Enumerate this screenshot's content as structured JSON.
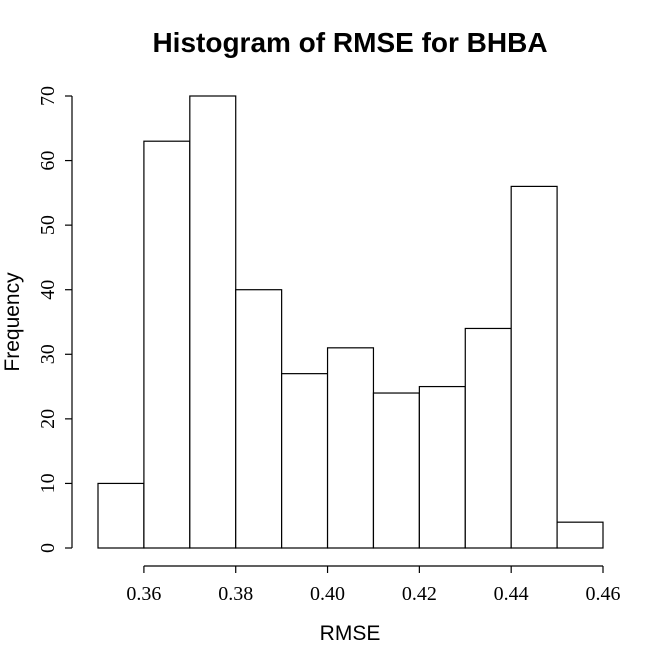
{
  "chart_data": {
    "type": "bar",
    "title": "Histogram of RMSE for BHBA",
    "xlabel": "RMSE",
    "ylabel": "Frequency",
    "bins": [
      {
        "start": 0.35,
        "end": 0.36,
        "count": 10
      },
      {
        "start": 0.36,
        "end": 0.37,
        "count": 63
      },
      {
        "start": 0.37,
        "end": 0.38,
        "count": 70
      },
      {
        "start": 0.38,
        "end": 0.39,
        "count": 40
      },
      {
        "start": 0.39,
        "end": 0.4,
        "count": 27
      },
      {
        "start": 0.4,
        "end": 0.41,
        "count": 31
      },
      {
        "start": 0.41,
        "end": 0.42,
        "count": 24
      },
      {
        "start": 0.42,
        "end": 0.43,
        "count": 25
      },
      {
        "start": 0.43,
        "end": 0.44,
        "count": 34
      },
      {
        "start": 0.44,
        "end": 0.45,
        "count": 56
      },
      {
        "start": 0.45,
        "end": 0.46,
        "count": 4
      }
    ],
    "x_ticks": [
      "0.36",
      "0.38",
      "0.40",
      "0.42",
      "0.44",
      "0.46"
    ],
    "x_tick_values": [
      0.36,
      0.38,
      0.4,
      0.42,
      0.44,
      0.46
    ],
    "y_ticks": [
      "0",
      "10",
      "20",
      "30",
      "40",
      "50",
      "60",
      "70"
    ],
    "y_tick_values": [
      0,
      10,
      20,
      30,
      40,
      50,
      60,
      70
    ],
    "xlim": [
      0.35,
      0.46
    ],
    "ylim": [
      0,
      70
    ],
    "grid": false,
    "bar_fill": "#ffffff",
    "bar_stroke": "#000000"
  }
}
